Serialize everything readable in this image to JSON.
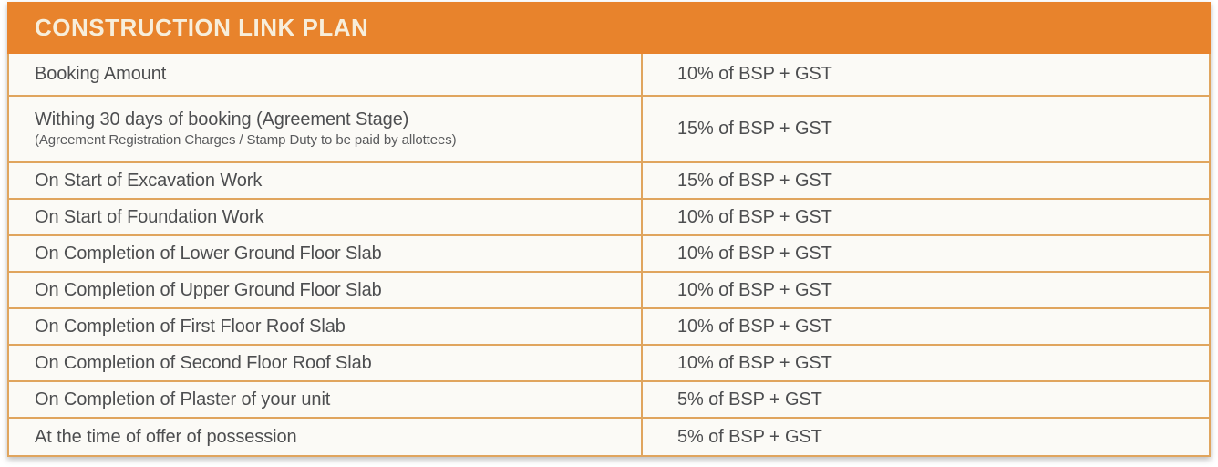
{
  "header": {
    "title": "CONSTRUCTION LINK PLAN"
  },
  "colors": {
    "accent_orange": "#E8832C",
    "header_text": "#F7EEDB",
    "grid_line": "#E0A55E",
    "body_text": "#4D4E50",
    "row_bg": "#FBFAF6"
  },
  "table": {
    "rows": [
      {
        "stage": "Booking Amount",
        "value": "10% of BSP + GST"
      },
      {
        "stage": "Withing 30 days of booking (Agreement Stage)",
        "stage_note": "(Agreement Registration Charges / Stamp Duty to be paid by allottees)",
        "value": "15% of BSP + GST"
      },
      {
        "stage": "On Start of Excavation Work",
        "value": "15% of BSP + GST"
      },
      {
        "stage": "On Start of Foundation Work",
        "value": "10% of BSP + GST"
      },
      {
        "stage": "On Completion of Lower Ground Floor Slab",
        "value": "10% of BSP + GST"
      },
      {
        "stage": "On Completion of Upper Ground Floor Slab",
        "value": "10% of BSP + GST"
      },
      {
        "stage": "On Completion of First Floor Roof Slab",
        "value": "10% of BSP + GST"
      },
      {
        "stage": "On Completion of Second Floor Roof Slab",
        "value": "10% of BSP + GST"
      },
      {
        "stage": "On Completion of Plaster of your unit",
        "value": "5% of BSP + GST"
      },
      {
        "stage": "At the time of offer of possession",
        "value": "5% of BSP + GST"
      }
    ]
  }
}
